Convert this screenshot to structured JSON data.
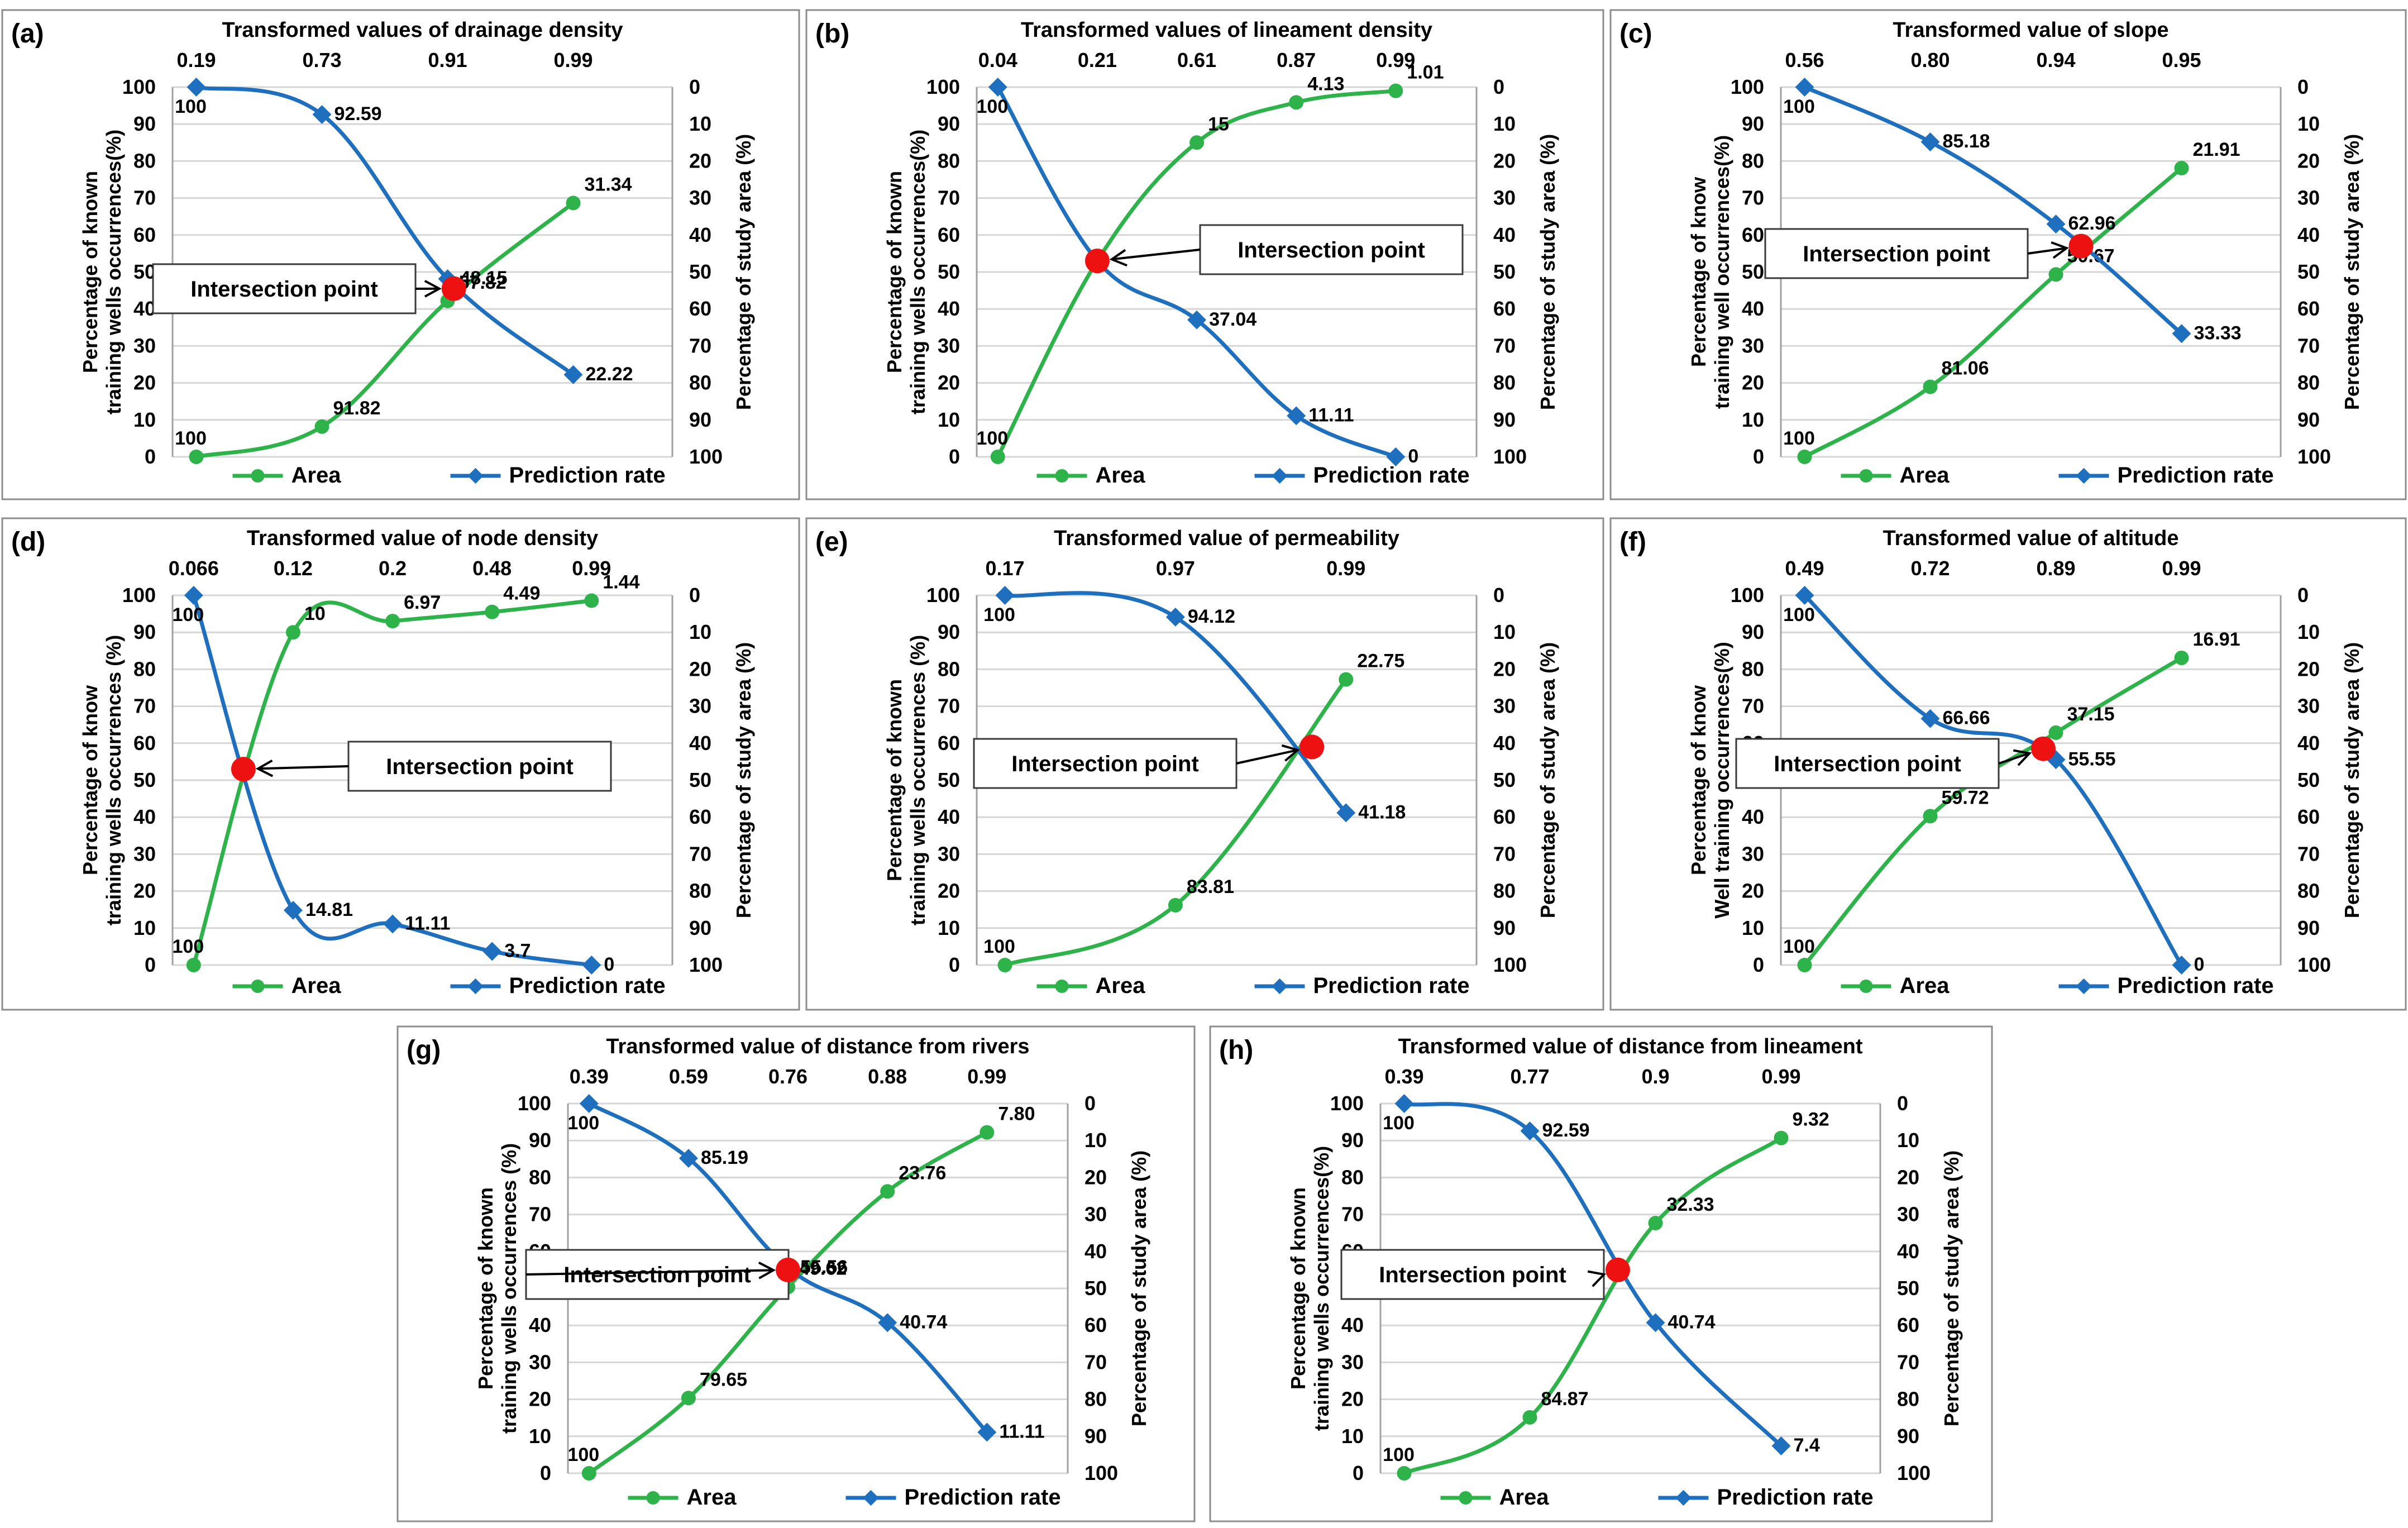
{
  "colors": {
    "area": "#2db34a",
    "prediction": "#1f6fbf",
    "intersection": "#ee1111"
  },
  "legend": {
    "area": "Area",
    "prediction": "Prediction rate"
  },
  "callout": "Intersection point",
  "chart_data": [
    {
      "type": "line",
      "panel": "(a)",
      "top_title": "Transformed values of drainage density",
      "top_ticks": [
        "0.19",
        "0.73",
        "0.91",
        "0.99"
      ],
      "ylabel_left": [
        "Percentage of known",
        "training wells occurrences(%)"
      ],
      "ylabel_right": "Percentage of study area (%)",
      "y_left_ticks": [
        "0",
        "10",
        "20",
        "30",
        "40",
        "50",
        "60",
        "70",
        "80",
        "90",
        "100"
      ],
      "y_right_ticks": [
        "100",
        "90",
        "80",
        "70",
        "60",
        "50",
        "40",
        "30",
        "20",
        "10",
        "0"
      ],
      "ylim": [
        0,
        100
      ],
      "series": [
        {
          "name": "Area",
          "values": [
            0,
            8.18,
            42.18,
            68.66
          ],
          "labels": [
            "100",
            "91.82",
            "57.82",
            "31.34"
          ]
        },
        {
          "name": "Prediction rate",
          "values": [
            100,
            92.59,
            48.15,
            22.22
          ],
          "labels": [
            "100",
            "92.59",
            "48.15",
            "22.22"
          ]
        }
      ],
      "intersection": {
        "x": 2.05,
        "y": 45.5
      }
    },
    {
      "type": "line",
      "panel": "(b)",
      "top_title": "Transformed values of lineament density",
      "top_ticks": [
        "0.04",
        "0.21",
        "0.61",
        "0.87",
        "0.99"
      ],
      "ylabel_left": [
        "Percentage of known",
        "training wells occurrences(%)"
      ],
      "ylabel_right": "Percentage of study area (%)",
      "y_left_ticks": [
        "0",
        "10",
        "20",
        "30",
        "40",
        "50",
        "60",
        "70",
        "80",
        "90",
        "100"
      ],
      "y_right_ticks": [
        "100",
        "90",
        "80",
        "70",
        "60",
        "50",
        "40",
        "30",
        "20",
        "10",
        "0"
      ],
      "ylim": [
        0,
        100
      ],
      "series": [
        {
          "name": "Area",
          "values": [
            0,
            53,
            85,
            95.87,
            98.99
          ],
          "labels": [
            "100",
            "",
            "15",
            "4.13",
            "1.01"
          ]
        },
        {
          "name": "Prediction rate",
          "values": [
            100,
            53,
            37.04,
            11.11,
            0
          ],
          "labels": [
            "100",
            "",
            "37.04",
            "11.11",
            "0"
          ]
        }
      ],
      "intersection": {
        "x": 1.0,
        "y": 53
      }
    },
    {
      "type": "line",
      "panel": "(c)",
      "top_title": "Transformed value of slope",
      "top_ticks": [
        "0.56",
        "0.80",
        "0.94",
        "0.95"
      ],
      "ylabel_left": [
        "Percentage of know",
        "training well occurrences(%)"
      ],
      "ylabel_right": "Percentage of study area (%)",
      "y_left_ticks": [
        "0",
        "10",
        "20",
        "30",
        "40",
        "50",
        "60",
        "70",
        "80",
        "90",
        "100"
      ],
      "y_right_ticks": [
        "100",
        "90",
        "80",
        "70",
        "60",
        "50",
        "40",
        "30",
        "20",
        "10",
        "0"
      ],
      "ylim": [
        0,
        100
      ],
      "series": [
        {
          "name": "Area",
          "values": [
            0,
            18.94,
            49.33,
            78.09
          ],
          "labels": [
            "100",
            "81.06",
            "50.67",
            "21.91"
          ]
        },
        {
          "name": "Prediction rate",
          "values": [
            100,
            85.18,
            62.96,
            33.33
          ],
          "labels": [
            "100",
            "85.18",
            "62.96",
            "33.33"
          ]
        }
      ],
      "intersection": {
        "x": 2.2,
        "y": 57
      }
    },
    {
      "type": "line",
      "panel": "(d)",
      "top_title": "Transformed value of node density",
      "top_ticks": [
        "0.066",
        "0.12",
        "0.2",
        "0.48",
        "0.99"
      ],
      "ylabel_left": [
        "Percentage of know",
        "training wells occurrences (%)"
      ],
      "ylabel_right": "Percentage of study area (%)",
      "y_left_ticks": [
        "0",
        "10",
        "20",
        "30",
        "40",
        "50",
        "60",
        "70",
        "80",
        "90",
        "100"
      ],
      "y_right_ticks": [
        "100",
        "90",
        "80",
        "70",
        "60",
        "50",
        "40",
        "30",
        "20",
        "10",
        "0"
      ],
      "ylim": [
        0,
        100
      ],
      "series": [
        {
          "name": "Area",
          "values": [
            0,
            90,
            93.03,
            95.51,
            98.56
          ],
          "labels": [
            "100",
            "10",
            "6.97",
            "4.49",
            "1.44"
          ]
        },
        {
          "name": "Prediction rate",
          "values": [
            100,
            14.81,
            11.11,
            3.7,
            0
          ],
          "labels": [
            "100",
            "14.81",
            "11.11",
            "3.7",
            "0"
          ]
        }
      ],
      "intersection": {
        "x": 0.5,
        "y": 53
      }
    },
    {
      "type": "line",
      "panel": "(e)",
      "top_title": "Transformed value of permeability",
      "top_ticks": [
        "0.17",
        "0.97",
        "0.99"
      ],
      "ylabel_left": [
        "Percentage of known",
        "training wells occurrences (%)"
      ],
      "ylabel_right": "Percentage of study area (%)",
      "y_left_ticks": [
        "0",
        "10",
        "20",
        "30",
        "40",
        "50",
        "60",
        "70",
        "80",
        "90",
        "100"
      ],
      "y_right_ticks": [
        "100",
        "90",
        "80",
        "70",
        "60",
        "50",
        "40",
        "30",
        "20",
        "10",
        "0"
      ],
      "ylim": [
        0,
        100
      ],
      "series": [
        {
          "name": "Area",
          "values": [
            0,
            16.19,
            77.25
          ],
          "labels": [
            "100",
            "83.81",
            "22.75"
          ]
        },
        {
          "name": "Prediction rate",
          "values": [
            100,
            94.12,
            41.18
          ],
          "labels": [
            "100",
            "94.12",
            "41.18"
          ]
        }
      ],
      "intersection": {
        "x": 1.8,
        "y": 59
      }
    },
    {
      "type": "line",
      "panel": "(f)",
      "top_title": "Transformed value of altitude",
      "top_ticks": [
        "0.49",
        "0.72",
        "0.89",
        "0.99"
      ],
      "ylabel_left": [
        "Percentage of know",
        "Well training occurrences(%)"
      ],
      "ylabel_right": "Percentage of study area (%)",
      "y_left_ticks": [
        "0",
        "10",
        "20",
        "30",
        "40",
        "50",
        "60",
        "70",
        "80",
        "90",
        "100"
      ],
      "y_right_ticks": [
        "100",
        "90",
        "80",
        "70",
        "60",
        "50",
        "40",
        "30",
        "20",
        "10",
        "0"
      ],
      "ylim": [
        0,
        100
      ],
      "series": [
        {
          "name": "Area",
          "values": [
            0,
            40.28,
            62.85,
            83.09
          ],
          "labels": [
            "100",
            "59.72",
            "37.15",
            "16.91"
          ]
        },
        {
          "name": "Prediction rate",
          "values": [
            100,
            66.66,
            55.55,
            0
          ],
          "labels": [
            "100",
            "66.66",
            "55.55",
            "0"
          ]
        }
      ],
      "intersection": {
        "x": 1.9,
        "y": 58.5
      }
    },
    {
      "type": "line",
      "panel": "(g)",
      "top_title": "Transformed value of distance from rivers",
      "top_ticks": [
        "0.39",
        "0.59",
        "0.76",
        "0.88",
        "0.99"
      ],
      "ylabel_left": [
        "Percentage of known",
        "training wells occurrences (%)"
      ],
      "ylabel_right": "Percentage of study area (%)",
      "y_left_ticks": [
        "0",
        "10",
        "20",
        "30",
        "40",
        "50",
        "60",
        "70",
        "80",
        "90",
        "100"
      ],
      "y_right_ticks": [
        "100",
        "90",
        "80",
        "70",
        "60",
        "50",
        "40",
        "30",
        "20",
        "10",
        "0"
      ],
      "ylim": [
        0,
        100
      ],
      "series": [
        {
          "name": "Area",
          "values": [
            0,
            20.35,
            50.38,
            76.24,
            92.2
          ],
          "labels": [
            "100",
            "79.65",
            "49.62",
            "23.76",
            "7.80"
          ]
        },
        {
          "name": "Prediction rate",
          "values": [
            100,
            85.19,
            55.56,
            40.74,
            11.11
          ],
          "labels": [
            "100",
            "85.19",
            "55.56",
            "40.74",
            "11.11"
          ]
        }
      ],
      "intersection": {
        "x": 2.0,
        "y": 55
      }
    },
    {
      "type": "line",
      "panel": "(h)",
      "top_title": "Transformed value of distance from lineament",
      "top_ticks": [
        "0.39",
        "0.77",
        "0.9",
        "0.99"
      ],
      "ylabel_left": [
        "Percentage of known",
        "training wells occurrences(%)"
      ],
      "ylabel_right": "Percentage of study area (%)",
      "y_left_ticks": [
        "0",
        "10",
        "20",
        "30",
        "40",
        "50",
        "60",
        "70",
        "80",
        "90",
        "100"
      ],
      "y_right_ticks": [
        "100",
        "90",
        "80",
        "70",
        "60",
        "50",
        "40",
        "30",
        "20",
        "10",
        "0"
      ],
      "ylim": [
        0,
        100
      ],
      "series": [
        {
          "name": "Area",
          "values": [
            0,
            15.13,
            67.67,
            90.68
          ],
          "labels": [
            "100",
            "84.87",
            "32.33",
            "9.32"
          ]
        },
        {
          "name": "Prediction rate",
          "values": [
            100,
            92.59,
            40.74,
            7.4
          ],
          "labels": [
            "100",
            "92.59",
            "40.74",
            "7.4"
          ]
        }
      ],
      "intersection": {
        "x": 1.7,
        "y": 55
      }
    }
  ]
}
